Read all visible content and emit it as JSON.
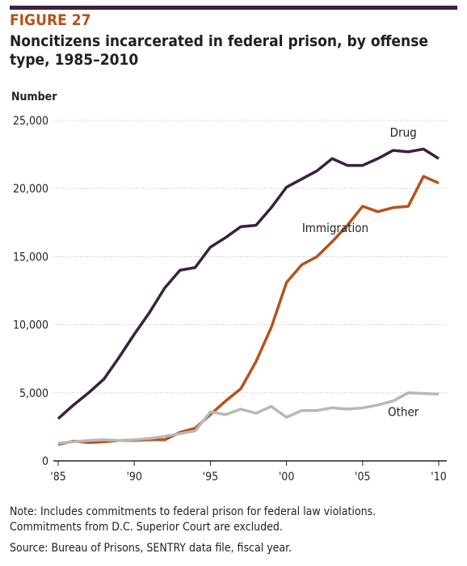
{
  "figure_label": "FIGURE 27",
  "notes": [
    "Note: Includes commitments to federal prison for federal law violations.",
    "Commitments from D.C. Superior Court are excluded."
  ],
  "source": "Source: Bureau of Prisons, SENTRY data file, fiscal year.",
  "chart_data": {
    "type": "line",
    "title_lines": [
      "Noncitizens incarcerated in federal prison, by offense",
      "type, 1985–2010"
    ],
    "y_label": "Number",
    "x": [
      1985,
      1986,
      1987,
      1988,
      1989,
      1990,
      1991,
      1992,
      1993,
      1994,
      1995,
      1996,
      1997,
      1998,
      1999,
      2000,
      2001,
      2002,
      2003,
      2004,
      2005,
      2006,
      2007,
      2008,
      2009,
      2010
    ],
    "xlim": [
      1985,
      2010
    ],
    "xticks": [
      {
        "value": 1985,
        "label": "'85"
      },
      {
        "value": 1990,
        "label": "'90"
      },
      {
        "value": 1995,
        "label": "'95"
      },
      {
        "value": 2000,
        "label": "'00"
      },
      {
        "value": 2005,
        "label": "'05"
      },
      {
        "value": 2010,
        "label": "'10"
      }
    ],
    "ylim": [
      0,
      25000
    ],
    "yticks": [
      0,
      {
        "value": 5000,
        "label": "5,000"
      },
      {
        "value": 10000,
        "label": "10,000"
      },
      {
        "value": 15000,
        "label": "15,000"
      },
      {
        "value": 20000,
        "label": "20,000"
      },
      {
        "value": 25000,
        "label": "25,000"
      }
    ],
    "grid": true,
    "series": [
      {
        "name": "Drug",
        "color": "#3b2040",
        "values": [
          3100,
          4100,
          5000,
          6000,
          7600,
          9300,
          10900,
          12700,
          14000,
          14200,
          15700,
          16400,
          17200,
          17300,
          18600,
          20100,
          20700,
          21300,
          22200,
          21700,
          21700,
          22200,
          22800,
          22700,
          22900,
          22200
        ]
      },
      {
        "name": "Immigration",
        "color": "#b5531c",
        "values": [
          1200,
          1450,
          1350,
          1400,
          1500,
          1500,
          1550,
          1550,
          2100,
          2400,
          3400,
          4400,
          5300,
          7300,
          9800,
          13100,
          14400,
          15000,
          16100,
          17300,
          18700,
          18300,
          18600,
          18700,
          20900,
          20400
        ]
      },
      {
        "name": "Other",
        "color": "#b8b8b8",
        "values": [
          1300,
          1400,
          1500,
          1550,
          1500,
          1550,
          1650,
          1800,
          2000,
          2200,
          3600,
          3400,
          3800,
          3500,
          4000,
          3200,
          3700,
          3700,
          3900,
          3800,
          3900,
          4100,
          4400,
          5000,
          4950,
          4900
        ]
      }
    ]
  }
}
